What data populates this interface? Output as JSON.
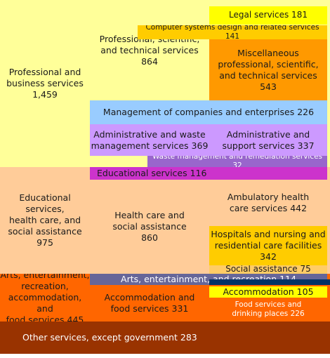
{
  "chart_data": {
    "type": "treemap",
    "title": "",
    "colors": {
      "professional": "#ffff99",
      "professional_sub": "#ff9900",
      "professional_light": "#ffcc00",
      "management": "#99ccff",
      "administrative": "#cc99ff",
      "waste": "#9966cc",
      "educational_sub": "#cc33cc",
      "health": "#ffcc99",
      "health_sub": "#ffcc00",
      "social": "#ffcc66",
      "arts": "#ff6600",
      "arts_sub": "#666699",
      "accommodation": "#ffff00",
      "accommodation_group": "#ff6600",
      "food": "#ff6600",
      "other": "#993300",
      "stripe": "#003366"
    },
    "groups": [
      {
        "key": "professional",
        "label": "Professional and\nbusiness services\n1,459",
        "value": 1459,
        "children": [
          {
            "key": "pst",
            "label": "Professional, scientific,\nand technical services\n864",
            "value": 864,
            "children": [
              {
                "key": "legal",
                "label": "Legal services 181",
                "value": 181
              },
              {
                "key": "computer",
                "label": "Computer systems design and related services 141",
                "value": 141
              },
              {
                "key": "misc_pst",
                "label": "Miscellaneous\nprofessional, scientific,\nand technical services\n543",
                "value": 543
              }
            ]
          },
          {
            "key": "management",
            "label": "Management of companies and enterprises 226",
            "value": 226
          },
          {
            "key": "admin_waste",
            "label": "Administrative and waste\nmanagement services 369",
            "value": 369,
            "children": [
              {
                "key": "admin_support",
                "label": "Administrative and\nsupport services 337",
                "value": 337
              },
              {
                "key": "waste",
                "label": "Waste management and remediation services 32",
                "value": 32
              }
            ]
          }
        ]
      },
      {
        "key": "edu_health",
        "label": "Educational\nservices,\nhealth care, and\nsocial assistance\n975",
        "value": 975,
        "children": [
          {
            "key": "educational",
            "label": "Educational services 116",
            "value": 116
          },
          {
            "key": "health_social",
            "label": "Health care and\nsocial assistance\n860",
            "value": 860,
            "children": [
              {
                "key": "ambulatory",
                "label": "Ambulatory health\ncare services  442",
                "value": 442
              },
              {
                "key": "hospitals",
                "label": "Hospitals and nursing and\nresidential care facilities\n342",
                "value": 342
              },
              {
                "key": "social_assistance",
                "label": "Social assistance 75",
                "value": 75
              }
            ]
          }
        ]
      },
      {
        "key": "arts_accommodation",
        "label": "Arts, entertainment,\nrecreation,\naccommodation, and\nfood services  445",
        "value": 445,
        "children": [
          {
            "key": "arts",
            "label": "Arts, entertainment, and recreation 114",
            "value": 114
          },
          {
            "key": "accommodation_food",
            "label": "Accommodation and\nfood services  331",
            "value": 331,
            "children": [
              {
                "key": "accommodation",
                "label": "Accommodation 105",
                "value": 105
              },
              {
                "key": "food",
                "label": "Food services and\ndrinking places  226",
                "value": 226
              }
            ]
          }
        ]
      },
      {
        "key": "other",
        "label": "Other services, except government  283",
        "value": 283
      }
    ]
  }
}
